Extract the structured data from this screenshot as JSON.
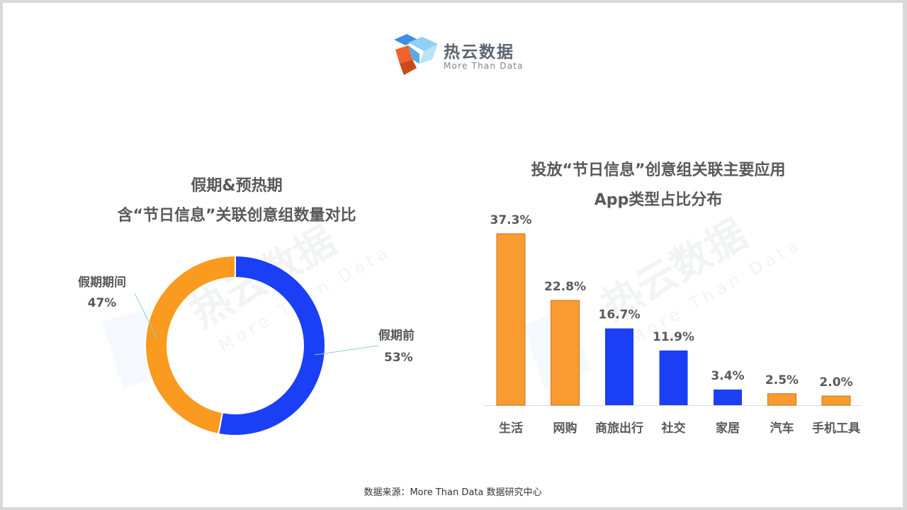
{
  "brand": {
    "name": "热云数据",
    "tagline": "More Than Data",
    "colors": {
      "blue": "#3f8fe0",
      "light_blue": "#8fd0f4",
      "orange": "#f0622a"
    }
  },
  "watermark": {
    "text": "热云数据",
    "subtext": "More Than Data"
  },
  "left_title": {
    "line1": "假期&预热期",
    "line2": "含“节日信息”关联创意组数量对比"
  },
  "right_title": {
    "line1": "投放“节日信息”创意组关联主要应用",
    "line2": "App类型占比分布"
  },
  "chart_data": [
    {
      "type": "pie",
      "donut": true,
      "title": "假期&预热期 含“节日信息”关联创意组数量对比",
      "slices": [
        {
          "label": "假期前",
          "value": 53,
          "display": "53%",
          "color": "#1a3ff5"
        },
        {
          "label": "假期期间",
          "value": 47,
          "display": "47%",
          "color": "#fa9a1e"
        }
      ]
    },
    {
      "type": "bar",
      "title": "投放“节日信息”创意组关联主要应用 App类型占比分布",
      "categories": [
        "生活",
        "网购",
        "商旅出行",
        "社交",
        "家居",
        "汽车",
        "手机工具"
      ],
      "values": [
        37.3,
        22.8,
        16.7,
        11.9,
        3.4,
        2.5,
        2.0
      ],
      "labels": [
        "37.3%",
        "22.8%",
        "16.7%",
        "11.9%",
        "3.4%",
        "2.5%",
        "2.0%"
      ],
      "bar_colors": [
        "#fa9a30",
        "#fa9a30",
        "#1a3ff5",
        "#1a3ff5",
        "#1a3ff5",
        "#fa9a30",
        "#fa9a30"
      ],
      "ylim": [
        0,
        37.3
      ],
      "grid": false,
      "legend": "none"
    }
  ],
  "source": "数据来源：More Than Data 数据研究中心"
}
